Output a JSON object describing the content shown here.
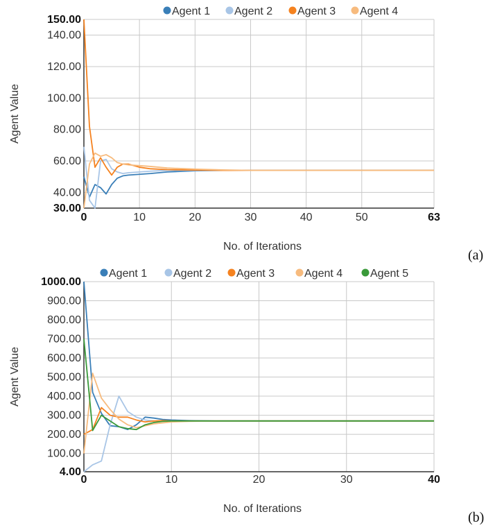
{
  "chart_data": [
    {
      "type": "line",
      "panel_label": "(a)",
      "xlabel": "No. of Iterations",
      "ylabel": "Agent Value",
      "xlim": [
        0,
        63
      ],
      "ylim": [
        30,
        150
      ],
      "x_ticks": [
        0,
        10,
        20,
        30,
        40,
        50,
        63
      ],
      "y_ticks": [
        30,
        40,
        60,
        80,
        100,
        120,
        140,
        150
      ],
      "y_tick_labels": [
        "30.00",
        "40.00",
        "60.00",
        "80.00",
        "100.00",
        "120.00",
        "140.00",
        "150.00"
      ],
      "bold_ticks": {
        "x": [
          0,
          63
        ],
        "y": [
          30,
          150
        ]
      },
      "grid": true,
      "legend_placement": "top",
      "series": [
        {
          "name": "Agent 1",
          "color": "#3a7fb8",
          "x": [
            0,
            1,
            2,
            3,
            4,
            5,
            6,
            7,
            8,
            10,
            12,
            15,
            20,
            25,
            30,
            40,
            50,
            63
          ],
          "y": [
            50,
            37,
            45,
            43,
            39,
            45,
            49,
            50.5,
            51,
            51.5,
            52,
            53,
            53.7,
            54,
            54,
            54,
            54,
            54
          ]
        },
        {
          "name": "Agent 2",
          "color": "#a8c5e6",
          "x": [
            0,
            1,
            2,
            3,
            4,
            5,
            6,
            7,
            8,
            10,
            12,
            15,
            20,
            25,
            30,
            40,
            50,
            63
          ],
          "y": [
            69,
            35,
            30,
            60,
            61,
            55,
            53,
            52,
            52.5,
            53,
            53.5,
            54,
            54,
            54,
            54,
            54,
            54,
            54
          ]
        },
        {
          "name": "Agent 3",
          "color": "#f5821f",
          "x": [
            0,
            1,
            2,
            3,
            4,
            5,
            6,
            7,
            8,
            10,
            12,
            15,
            20,
            25,
            30,
            40,
            50,
            63
          ],
          "y": [
            150,
            82,
            56,
            62,
            56,
            51,
            56,
            58,
            58,
            56,
            55,
            54.5,
            54.2,
            54,
            54,
            54,
            54,
            54
          ]
        },
        {
          "name": "Agent 4",
          "color": "#f7bb7e",
          "x": [
            0,
            1,
            2,
            3,
            4,
            5,
            6,
            7,
            8,
            10,
            12,
            15,
            20,
            25,
            30,
            40,
            50,
            63
          ],
          "y": [
            30,
            58,
            65,
            63,
            64,
            62,
            59,
            58,
            57.5,
            57,
            56.5,
            55.5,
            54.8,
            54.3,
            54,
            54,
            54,
            54
          ]
        }
      ]
    },
    {
      "type": "line",
      "panel_label": "(b)",
      "xlabel": "No. of Iterations",
      "ylabel": "Agent Value",
      "xlim": [
        0,
        40
      ],
      "ylim": [
        4,
        1000
      ],
      "x_ticks": [
        0,
        10,
        20,
        30,
        40
      ],
      "y_ticks": [
        4,
        100,
        200,
        300,
        400,
        500,
        600,
        700,
        800,
        900,
        1000
      ],
      "y_tick_labels": [
        "4.00",
        "100.00",
        "200.00",
        "300.00",
        "400.00",
        "500.00",
        "600.00",
        "700.00",
        "800.00",
        "900.00",
        "1000.00"
      ],
      "bold_ticks": {
        "x": [
          0,
          40
        ],
        "y": [
          4,
          1000
        ]
      },
      "grid": true,
      "legend_placement": "top",
      "series": [
        {
          "name": "Agent 1",
          "color": "#3a7fb8",
          "x": [
            0,
            1,
            2,
            3,
            4,
            5,
            6,
            7,
            8,
            9,
            10,
            12,
            15,
            20,
            30,
            40
          ],
          "y": [
            1000,
            420,
            310,
            245,
            240,
            225,
            250,
            290,
            285,
            278,
            275,
            272,
            270,
            270,
            270,
            270
          ]
        },
        {
          "name": "Agent 2",
          "color": "#a8c5e6",
          "x": [
            0,
            1,
            2,
            3,
            4,
            5,
            6,
            7,
            8,
            9,
            10,
            12,
            15,
            20,
            30,
            40
          ],
          "y": [
            4,
            40,
            60,
            250,
            400,
            320,
            290,
            275,
            270,
            268,
            270,
            270,
            270,
            270,
            270,
            270
          ]
        },
        {
          "name": "Agent 3",
          "color": "#f5821f",
          "x": [
            0,
            1,
            2,
            3,
            4,
            5,
            6,
            7,
            8,
            9,
            10,
            12,
            15,
            20,
            30,
            40
          ],
          "y": [
            200,
            225,
            340,
            300,
            290,
            290,
            275,
            265,
            270,
            272,
            270,
            270,
            270,
            270,
            270,
            270
          ]
        },
        {
          "name": "Agent 4",
          "color": "#f7bb7e",
          "x": [
            0,
            1,
            2,
            3,
            4,
            5,
            6,
            7,
            8,
            9,
            10,
            12,
            15,
            20,
            30,
            40
          ],
          "y": [
            100,
            520,
            390,
            330,
            280,
            250,
            235,
            245,
            255,
            260,
            265,
            268,
            270,
            270,
            270,
            270
          ]
        },
        {
          "name": "Agent 5",
          "color": "#3a9a3a",
          "x": [
            0,
            1,
            2,
            3,
            4,
            5,
            6,
            7,
            8,
            9,
            10,
            12,
            15,
            20,
            30,
            40
          ],
          "y": [
            700,
            220,
            300,
            270,
            240,
            230,
            225,
            250,
            262,
            268,
            270,
            270,
            270,
            270,
            270,
            270
          ]
        }
      ]
    }
  ]
}
